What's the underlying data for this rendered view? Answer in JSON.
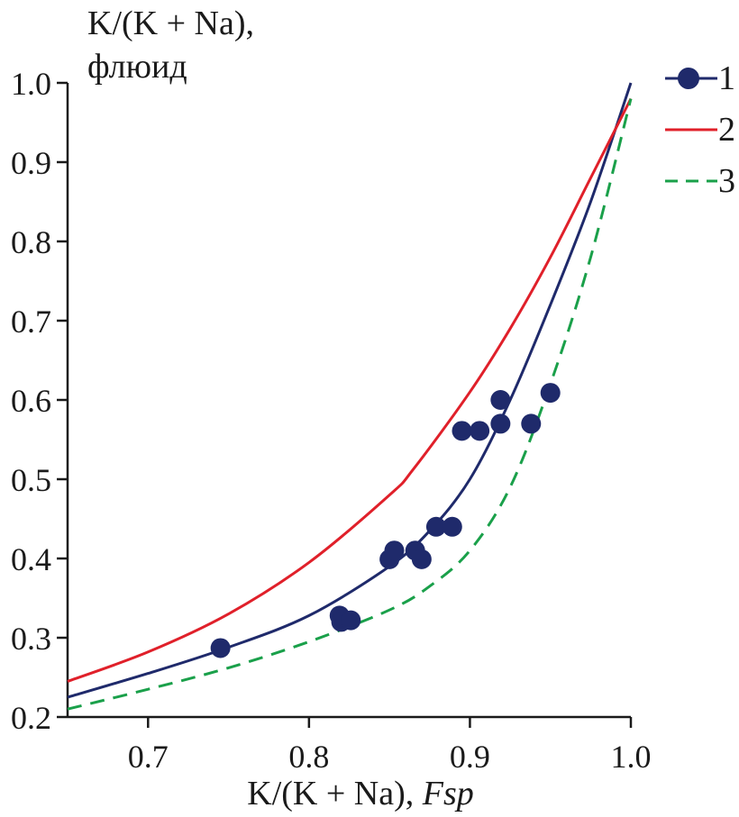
{
  "chart_data": {
    "type": "scatter",
    "ylabel_lines": [
      "K/(K + Na),",
      "флюид"
    ],
    "xlabel_main": "K/(K + Na), ",
    "xlabel_italic": "Fsp",
    "xlim": [
      0.65,
      1.0
    ],
    "ylim": [
      0.2,
      1.0
    ],
    "xticks": [
      0.7,
      0.8,
      0.9,
      1.0
    ],
    "xtick_labels": [
      "0.7",
      "0.8",
      "0.9",
      "1.0"
    ],
    "yticks": [
      0.2,
      0.3,
      0.4,
      0.5,
      0.6,
      0.7,
      0.8,
      0.9,
      1.0
    ],
    "ytick_labels": [
      "0.2",
      "0.3",
      "0.4",
      "0.5",
      "0.6",
      "0.7",
      "0.8",
      "0.9",
      "1.0"
    ],
    "grid": false,
    "legend_position": "top-right",
    "series": [
      {
        "name": "1",
        "kind": "points+line",
        "color": "#1f2a6b",
        "points": [
          [
            0.745,
            0.287
          ],
          [
            0.819,
            0.328
          ],
          [
            0.82,
            0.32
          ],
          [
            0.826,
            0.322
          ],
          [
            0.85,
            0.399
          ],
          [
            0.853,
            0.41
          ],
          [
            0.866,
            0.41
          ],
          [
            0.87,
            0.399
          ],
          [
            0.879,
            0.44
          ],
          [
            0.889,
            0.44
          ],
          [
            0.895,
            0.561
          ],
          [
            0.906,
            0.561
          ],
          [
            0.919,
            0.6
          ],
          [
            0.919,
            0.57
          ],
          [
            0.938,
            0.57
          ],
          [
            0.95,
            0.609
          ]
        ],
        "line": [
          [
            0.65,
            0.225
          ],
          [
            0.7,
            0.255
          ],
          [
            0.75,
            0.288
          ],
          [
            0.8,
            0.328
          ],
          [
            0.85,
            0.39
          ],
          [
            0.875,
            0.435
          ],
          [
            0.9,
            0.5
          ],
          [
            0.925,
            0.6
          ],
          [
            0.95,
            0.72
          ],
          [
            0.975,
            0.85
          ],
          [
            1.0,
            1.0
          ]
        ]
      },
      {
        "name": "2",
        "kind": "line",
        "color": "#e0202a",
        "line": [
          [
            0.65,
            0.245
          ],
          [
            0.7,
            0.282
          ],
          [
            0.75,
            0.33
          ],
          [
            0.8,
            0.395
          ],
          [
            0.85,
            0.48
          ],
          [
            0.865,
            0.513
          ],
          [
            0.9,
            0.61
          ],
          [
            0.925,
            0.69
          ],
          [
            0.95,
            0.78
          ],
          [
            0.975,
            0.88
          ],
          [
            1.0,
            0.98
          ]
        ]
      },
      {
        "name": "3",
        "kind": "dashed-line",
        "color": "#1aa04a",
        "line": [
          [
            0.65,
            0.21
          ],
          [
            0.7,
            0.235
          ],
          [
            0.75,
            0.262
          ],
          [
            0.8,
            0.295
          ],
          [
            0.85,
            0.335
          ],
          [
            0.875,
            0.365
          ],
          [
            0.9,
            0.41
          ],
          [
            0.925,
            0.49
          ],
          [
            0.95,
            0.62
          ],
          [
            0.975,
            0.78
          ],
          [
            1.0,
            0.98
          ]
        ]
      }
    ]
  }
}
